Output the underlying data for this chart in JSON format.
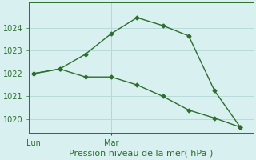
{
  "line1_x": [
    0,
    1,
    2,
    3,
    4,
    5,
    6,
    7,
    8
  ],
  "line1_y": [
    1022.0,
    1022.2,
    1022.85,
    1023.75,
    1024.45,
    1024.1,
    1023.65,
    1021.25,
    1019.65
  ],
  "line2_x": [
    0,
    1,
    2,
    3,
    4,
    5,
    6,
    7,
    8
  ],
  "line2_y": [
    1022.0,
    1022.2,
    1021.85,
    1021.85,
    1021.5,
    1021.0,
    1020.4,
    1020.05,
    1019.65
  ],
  "line_color": "#2d6e2d",
  "marker": "D",
  "markersize": 2.5,
  "linewidth": 1.0,
  "background_color": "#d8f0f0",
  "grid_color": "#b8dada",
  "xlabel": "Pression niveau de la mer( hPa )",
  "xlabel_fontsize": 8,
  "ylim": [
    1019.4,
    1025.1
  ],
  "yticks": [
    1020,
    1021,
    1022,
    1023,
    1024
  ],
  "xtick_positions": [
    0,
    3
  ],
  "xtick_labels": [
    "Lun",
    "Mar"
  ],
  "vline_x": [
    0,
    3
  ],
  "tick_fontsize": 7,
  "xlim": [
    -0.2,
    8.5
  ]
}
